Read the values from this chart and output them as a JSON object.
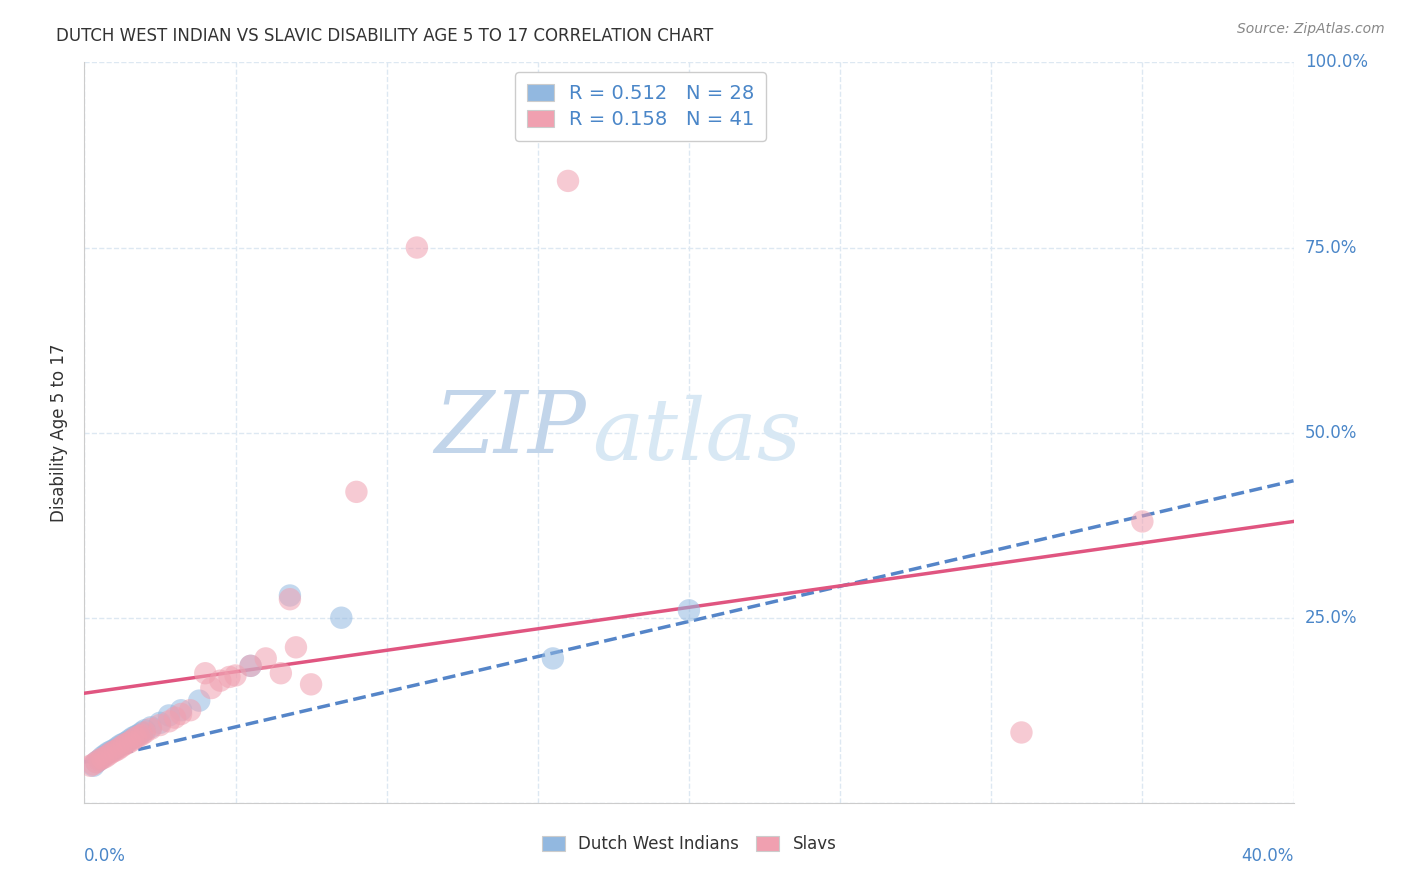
{
  "title": "DUTCH WEST INDIAN VS SLAVIC DISABILITY AGE 5 TO 17 CORRELATION CHART",
  "source": "Source: ZipAtlas.com",
  "ylabel": "Disability Age 5 to 17",
  "xlim": [
    0.0,
    0.4
  ],
  "ylim": [
    0.0,
    1.0
  ],
  "legend1_R": "0.512",
  "legend1_N": "28",
  "legend2_R": "0.158",
  "legend2_N": "41",
  "color_blue": "#92b8e0",
  "color_pink": "#f0a0b0",
  "trendline_blue": "#5585c8",
  "trendline_pink": "#e05580",
  "axis_color": "#4a86c8",
  "watermark_ZIP_color": "#c8d8ec",
  "watermark_atlas_color": "#d8e8f4",
  "dutch_x": [
    0.003,
    0.004,
    0.005,
    0.006,
    0.007,
    0.008,
    0.009,
    0.01,
    0.011,
    0.012,
    0.013,
    0.014,
    0.015,
    0.016,
    0.017,
    0.018,
    0.019,
    0.02,
    0.022,
    0.025,
    0.028,
    0.032,
    0.038,
    0.055,
    0.068,
    0.085,
    0.155,
    0.2
  ],
  "dutch_y": [
    0.05,
    0.055,
    0.058,
    0.062,
    0.065,
    0.068,
    0.07,
    0.072,
    0.075,
    0.078,
    0.08,
    0.082,
    0.085,
    0.088,
    0.09,
    0.092,
    0.095,
    0.098,
    0.102,
    0.108,
    0.118,
    0.125,
    0.138,
    0.185,
    0.28,
    0.25,
    0.195,
    0.26
  ],
  "slavic_x": [
    0.002,
    0.003,
    0.004,
    0.005,
    0.006,
    0.007,
    0.008,
    0.009,
    0.01,
    0.011,
    0.012,
    0.013,
    0.014,
    0.015,
    0.016,
    0.017,
    0.018,
    0.019,
    0.02,
    0.022,
    0.025,
    0.028,
    0.03,
    0.032,
    0.035,
    0.04,
    0.042,
    0.045,
    0.048,
    0.05,
    0.055,
    0.06,
    0.065,
    0.068,
    0.07,
    0.075,
    0.09,
    0.11,
    0.16,
    0.31,
    0.35
  ],
  "slavic_y": [
    0.05,
    0.052,
    0.055,
    0.058,
    0.06,
    0.062,
    0.065,
    0.068,
    0.07,
    0.072,
    0.075,
    0.078,
    0.08,
    0.082,
    0.085,
    0.088,
    0.09,
    0.092,
    0.095,
    0.1,
    0.105,
    0.11,
    0.115,
    0.12,
    0.125,
    0.175,
    0.155,
    0.165,
    0.17,
    0.172,
    0.185,
    0.195,
    0.175,
    0.275,
    0.21,
    0.16,
    0.42,
    0.75,
    0.84,
    0.095,
    0.38
  ],
  "trendline_dutch_x0": 0.0,
  "trendline_dutch_y0": 0.055,
  "trendline_dutch_x1": 0.4,
  "trendline_dutch_y1": 0.435,
  "trendline_slavic_x0": 0.0,
  "trendline_slavic_y0": 0.148,
  "trendline_slavic_x1": 0.4,
  "trendline_slavic_y1": 0.38,
  "grid_color": "#dde8f2",
  "background_color": "#ffffff"
}
